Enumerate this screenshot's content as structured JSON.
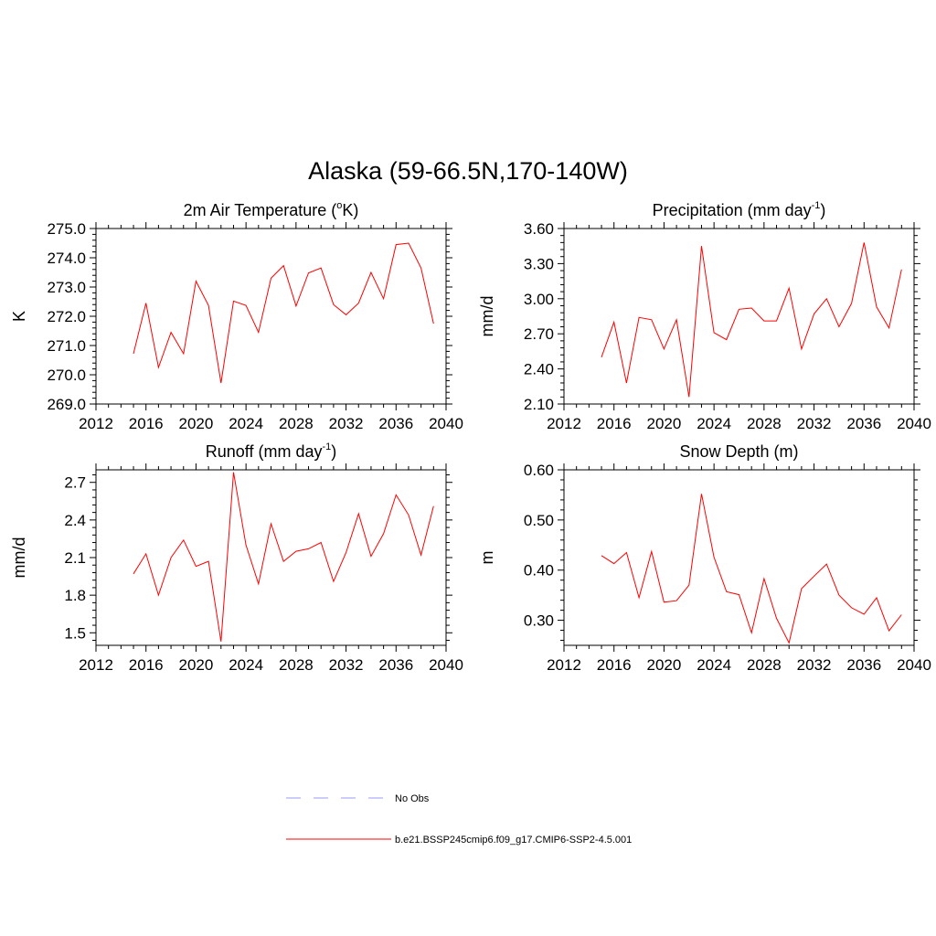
{
  "title": "Alaska (59-66.5N,170-140W)",
  "legend": [
    {
      "label": "No Obs",
      "color": "#9999ff",
      "dash": "dashed"
    },
    {
      "label": "b.e21.BSSP245cmip6.f09_g17.CMIP6-SSP2-4.5.001",
      "color": "#ff0000",
      "dash": "solid"
    }
  ],
  "chart_data": [
    {
      "type": "line",
      "title_main": "2m Air Temperature (",
      "title_sup": "o",
      "title_tail": "K)",
      "ylabel": "K",
      "xlim": [
        2012,
        2040
      ],
      "ylim": [
        269.0,
        275.0
      ],
      "xticks": [
        "2012",
        "2016",
        "2020",
        "2024",
        "2028",
        "2032",
        "2036",
        "2040"
      ],
      "yticks": [
        "269.0",
        "270.0",
        "271.0",
        "272.0",
        "273.0",
        "274.0",
        "275.0"
      ],
      "x": [
        2015,
        2016,
        2017,
        2018,
        2019,
        2020,
        2021,
        2022,
        2023,
        2024,
        2025,
        2026,
        2027,
        2028,
        2029,
        2030,
        2031,
        2032,
        2033,
        2034,
        2035,
        2036,
        2037,
        2038,
        2039
      ],
      "series": [
        {
          "color": "#ff0000",
          "values": [
            270.72,
            272.45,
            270.25,
            271.45,
            270.72,
            273.2,
            272.37,
            269.72,
            272.52,
            272.37,
            271.45,
            273.3,
            273.73,
            272.35,
            273.48,
            273.65,
            272.4,
            272.05,
            272.45,
            273.5,
            272.6,
            274.45,
            274.5,
            273.65,
            271.75
          ]
        }
      ]
    },
    {
      "type": "line",
      "title_main": "Precipitation (mm day",
      "title_sup": "-1",
      "title_tail": ")",
      "ylabel": "mm/d",
      "xlim": [
        2012,
        2040
      ],
      "ylim": [
        2.1,
        3.6
      ],
      "xticks": [
        "2012",
        "2016",
        "2020",
        "2024",
        "2028",
        "2032",
        "2036",
        "2040"
      ],
      "yticks": [
        "2.10",
        "2.40",
        "2.70",
        "3.00",
        "3.30",
        "3.60"
      ],
      "x": [
        2015,
        2016,
        2017,
        2018,
        2019,
        2020,
        2021,
        2022,
        2023,
        2024,
        2025,
        2026,
        2027,
        2028,
        2029,
        2030,
        2031,
        2032,
        2033,
        2034,
        2035,
        2036,
        2037,
        2038,
        2039
      ],
      "series": [
        {
          "color": "#ff0000",
          "values": [
            2.5,
            2.8,
            2.28,
            2.84,
            2.82,
            2.57,
            2.82,
            2.16,
            3.45,
            2.71,
            2.65,
            2.91,
            2.92,
            2.81,
            2.81,
            3.09,
            2.57,
            2.87,
            3.0,
            2.76,
            2.96,
            3.48,
            2.93,
            2.75,
            3.25
          ]
        }
      ]
    },
    {
      "type": "line",
      "title_main": "Runoff (mm day",
      "title_sup": "-1",
      "title_tail": ")",
      "ylabel": "mm/d",
      "xlim": [
        2012,
        2040
      ],
      "ylim": [
        1.4,
        2.8
      ],
      "xticks": [
        "2012",
        "2016",
        "2020",
        "2024",
        "2028",
        "2032",
        "2036",
        "2040"
      ],
      "yticks": [
        "1.5",
        "1.8",
        "2.1",
        "2.4",
        "2.7"
      ],
      "x": [
        2015,
        2016,
        2017,
        2018,
        2019,
        2020,
        2021,
        2022,
        2023,
        2024,
        2025,
        2026,
        2027,
        2028,
        2029,
        2030,
        2031,
        2032,
        2033,
        2034,
        2035,
        2036,
        2037,
        2038,
        2039
      ],
      "series": [
        {
          "color": "#ff0000",
          "values": [
            1.97,
            2.13,
            1.8,
            2.1,
            2.24,
            2.03,
            2.07,
            1.43,
            2.78,
            2.2,
            1.89,
            2.37,
            2.07,
            2.15,
            2.17,
            2.22,
            1.91,
            2.14,
            2.45,
            2.11,
            2.29,
            2.6,
            2.44,
            2.12,
            2.51
          ]
        }
      ]
    },
    {
      "type": "line",
      "title_main": "Snow Depth (m)",
      "title_sup": "",
      "title_tail": "",
      "ylabel": "m",
      "xlim": [
        2012,
        2040
      ],
      "ylim": [
        0.25,
        0.6
      ],
      "xticks": [
        "2012",
        "2016",
        "2020",
        "2024",
        "2028",
        "2032",
        "2036",
        "2040"
      ],
      "yticks": [
        "0.30",
        "0.40",
        "0.50",
        "0.60"
      ],
      "x": [
        2015,
        2016,
        2017,
        2018,
        2019,
        2020,
        2021,
        2022,
        2023,
        2024,
        2025,
        2026,
        2027,
        2028,
        2029,
        2030,
        2031,
        2032,
        2033,
        2034,
        2035,
        2036,
        2037,
        2038,
        2039
      ],
      "series": [
        {
          "color": "#ff0000",
          "values": [
            0.429,
            0.413,
            0.435,
            0.345,
            0.437,
            0.336,
            0.339,
            0.37,
            0.552,
            0.426,
            0.357,
            0.351,
            0.275,
            0.383,
            0.304,
            0.255,
            0.363,
            0.388,
            0.412,
            0.35,
            0.325,
            0.312,
            0.345,
            0.279,
            0.311
          ]
        }
      ]
    }
  ]
}
